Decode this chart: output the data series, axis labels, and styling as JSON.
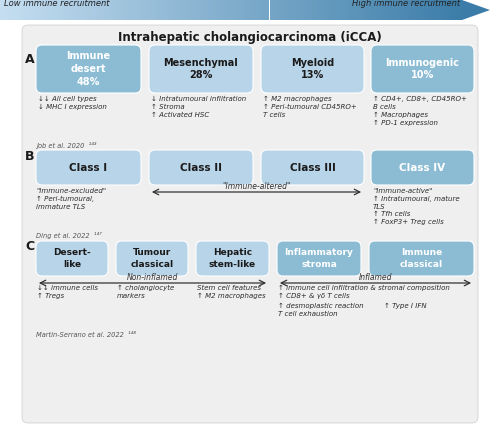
{
  "title": "Intrahepatic cholangiocarcinoma (iCCA)",
  "arrow_label_left": "Low immune recruitment",
  "arrow_label_right": "High immune recruitment",
  "panel_A": {
    "boxes": [
      {
        "label": "Immune\ndesert\n48%",
        "color": "#8bbcd4",
        "dark": true
      },
      {
        "label": "Mesenchymal\n28%",
        "color": "#b8d4e8",
        "dark": false
      },
      {
        "label": "Myeloid\n13%",
        "color": "#b8d4e8",
        "dark": false
      },
      {
        "label": "Immunogenic\n10%",
        "color": "#8bbcd4",
        "dark": true
      }
    ],
    "desc": [
      "↓↓ All cell types\n↓ MHC I expression",
      "↓ Intratumoural infiltration\n↑ Stroma\n↑ Activated HSC",
      "↑ M2 macrophages\n↑ Peri-tumoural CD45RO+\nT cells",
      "↑ CD4+, CD8+, CD45RO+\nB cells\n↑ Macrophages\n↑ PD-1 expression"
    ],
    "citation": "Job et al. 2020  ¹⁴³"
  },
  "panel_B": {
    "boxes": [
      {
        "label": "Class I",
        "color": "#b8d4e8",
        "dark": false
      },
      {
        "label": "Class II",
        "color": "#b8d4e8",
        "dark": false
      },
      {
        "label": "Class III",
        "color": "#b8d4e8",
        "dark": false
      },
      {
        "label": "Class IV",
        "color": "#8bbcd4",
        "dark": true
      }
    ],
    "arrow_label": "\"Immune-altered\"",
    "desc_left": "\"Immune-excluded\"\n↑ Peri-tumoural,\nimmature TLS",
    "desc_right": "\"Immune-active\"\n↑ Intratumoural, mature\nTLS\n↑ Tfh cells\n↑ FoxP3+ Treg cells",
    "citation": "Ding et al. 2022  ¹⁴⁷"
  },
  "panel_C": {
    "boxes": [
      {
        "label": "Desert-\nlike",
        "color": "#b8d4e8",
        "dark": false
      },
      {
        "label": "Tumour\nclassical",
        "color": "#b8d4e8",
        "dark": false
      },
      {
        "label": "Hepatic\nstem-like",
        "color": "#b8d4e8",
        "dark": false
      },
      {
        "label": "Inflammatory\nstroma",
        "color": "#8bbcd4",
        "dark": true
      },
      {
        "label": "Immune\nclassical",
        "color": "#8bbcd4",
        "dark": true
      }
    ],
    "non_inflamed_label": "Non-inflamed",
    "inflamed_label": "Inflamed",
    "desc_0": "↓↓ immune cells\n↑ Tregs",
    "desc_1": "↑ cholangiocyte\nmarkers",
    "desc_2": "Stem cell features\n↑ M2 macrophages",
    "desc_3a": "↑ immune cell infiltration & stromal composition\n↑ CD8+ & γδ T cells",
    "desc_3b": "↑ desmoplastic reaction\nT cell exhaustion",
    "desc_4": "↑ Type I IFN",
    "citation": "Martin-Serrano et al. 2022  ¹⁴⁸"
  },
  "bg_color": "#efefef",
  "box_light": "#b8d4e8",
  "box_dark": "#8bbcd4",
  "text_dark": "#1a1a1a",
  "text_italic_color": "#2a2a2a",
  "outer_bg": "#ffffff"
}
